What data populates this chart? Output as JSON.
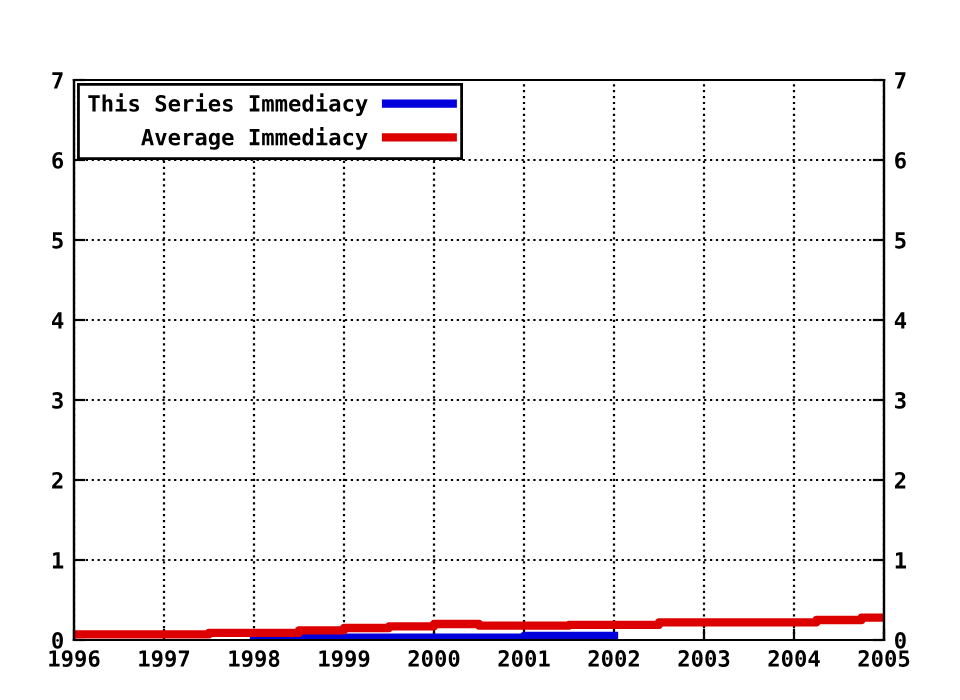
{
  "chart_data": {
    "type": "step",
    "series": [
      {
        "name": "This Series Immediacy",
        "color": "#0000dd",
        "x": [
          1998,
          1998.5,
          2001,
          2002
        ],
        "values": [
          0.05,
          0.03,
          0.05,
          0.05
        ]
      },
      {
        "name": "Average Immediacy",
        "color": "#dd0000",
        "x": [
          1996,
          1997.5,
          1998.5,
          1999,
          1999.5,
          2000,
          2000.5,
          2001.5,
          2002.5,
          2004.25,
          2004.75,
          2005
        ],
        "values": [
          0.07,
          0.09,
          0.12,
          0.15,
          0.17,
          0.2,
          0.18,
          0.19,
          0.22,
          0.25,
          0.28,
          0.28
        ]
      }
    ],
    "xlim": [
      1996,
      2005
    ],
    "xticks": [
      1996,
      1997,
      1998,
      1999,
      2000,
      2001,
      2002,
      2003,
      2004,
      2005
    ],
    "ylim": [
      0,
      7
    ],
    "yticks": [
      0,
      1,
      2,
      3,
      4,
      5,
      6,
      7
    ],
    "y2lim": [
      0,
      7
    ],
    "y2ticks": [
      0,
      1,
      2,
      3,
      4,
      5,
      6,
      7
    ],
    "grid": true,
    "legend": "top left",
    "line_style": "solid"
  }
}
